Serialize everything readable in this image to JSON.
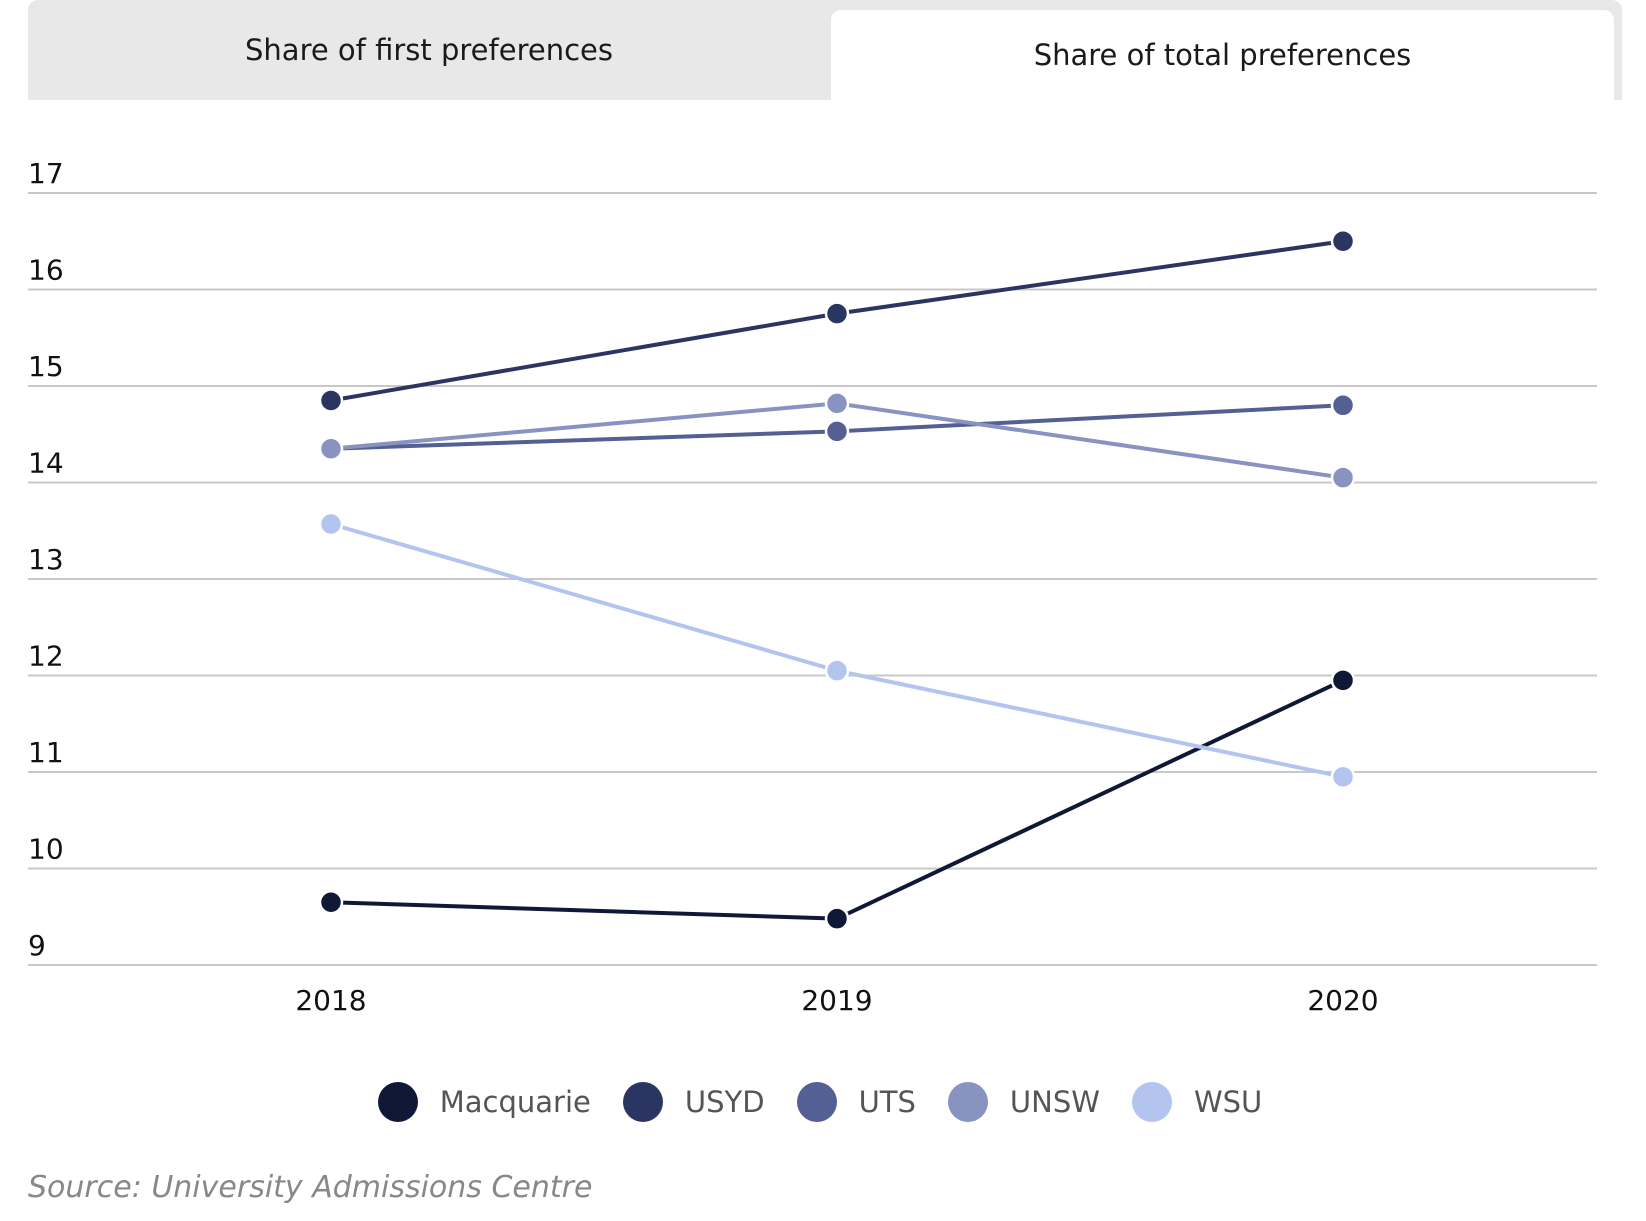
{
  "tabs": {
    "first": "Share of first preferences",
    "total": "Share of total preferences",
    "active": "total"
  },
  "source": "Source: University Admissions Centre",
  "colors": {
    "Macquarie": "#101838",
    "USYD": "#2b3562",
    "UTS": "#545f93",
    "UNSW": "#8893c2",
    "WSU": "#b3c5ef",
    "grid": "#c8c8c8",
    "tab_inactive": "#e8e8e8"
  },
  "chart_data": {
    "type": "line",
    "x": [
      "2018",
      "2019",
      "2020"
    ],
    "ylim": [
      9,
      17
    ],
    "yticks": [
      9,
      10,
      11,
      12,
      13,
      14,
      15,
      16,
      17
    ],
    "grid": true,
    "legend": "bottom",
    "series": [
      {
        "name": "Macquarie",
        "values": [
          9.65,
          9.48,
          11.95
        ]
      },
      {
        "name": "USYD",
        "values": [
          14.85,
          15.75,
          16.5
        ]
      },
      {
        "name": "UTS",
        "values": [
          14.35,
          14.53,
          14.8
        ]
      },
      {
        "name": "UNSW",
        "values": [
          14.35,
          14.82,
          14.05
        ]
      },
      {
        "name": "WSU",
        "values": [
          13.57,
          12.05,
          10.95
        ]
      }
    ]
  }
}
